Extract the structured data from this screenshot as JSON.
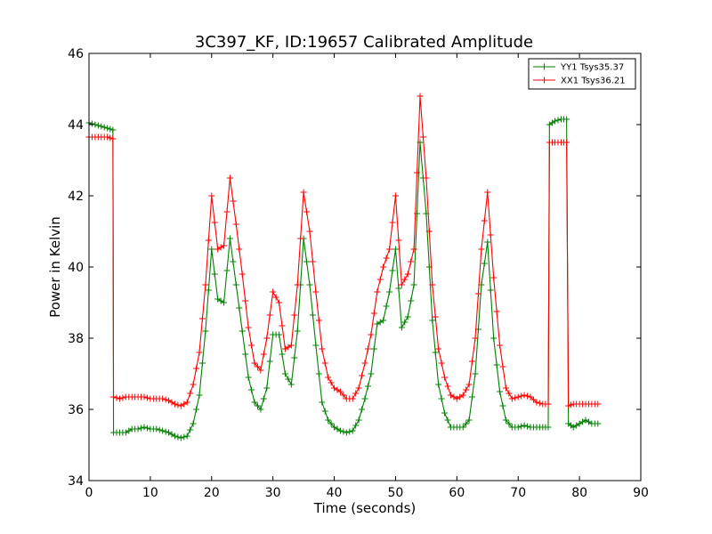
{
  "chart_data": {
    "type": "line",
    "title": "3C397_KF, ID:19657 Calibrated Amplitude",
    "xlabel": "Time (seconds)",
    "ylabel": "Power in Kelvin",
    "xlim": [
      0,
      90
    ],
    "ylim": [
      34,
      46
    ],
    "xticks": [
      "0",
      "10",
      "20",
      "30",
      "40",
      "50",
      "60",
      "70",
      "80",
      "90"
    ],
    "yticks": [
      "34",
      "36",
      "38",
      "40",
      "42",
      "44",
      "46"
    ],
    "grid": false,
    "legend_position": "top-right",
    "marker": "plus",
    "series": [
      {
        "name": "YY1 Tsys35.37",
        "color": "#008000",
        "points": [
          [
            0,
            44.05
          ],
          [
            1,
            44.0
          ],
          [
            2,
            43.95
          ],
          [
            3,
            43.9
          ],
          [
            3.9,
            43.85
          ],
          [
            4.0,
            35.35
          ],
          [
            5,
            35.35
          ],
          [
            6,
            35.35
          ],
          [
            7,
            35.45
          ],
          [
            8,
            35.45
          ],
          [
            9,
            35.5
          ],
          [
            10,
            35.45
          ],
          [
            11,
            35.45
          ],
          [
            12,
            35.4
          ],
          [
            13,
            35.35
          ],
          [
            14,
            35.25
          ],
          [
            15,
            35.2
          ],
          [
            16,
            35.25
          ],
          [
            17,
            35.6
          ],
          [
            18,
            36.4
          ],
          [
            19,
            38.2
          ],
          [
            20,
            40.5
          ],
          [
            21,
            39.1
          ],
          [
            22,
            39.0
          ],
          [
            23,
            40.8
          ],
          [
            24,
            39.5
          ],
          [
            25,
            38.2
          ],
          [
            26,
            36.9
          ],
          [
            27,
            36.2
          ],
          [
            28,
            36.0
          ],
          [
            29,
            36.6
          ],
          [
            30,
            38.1
          ],
          [
            31,
            38.1
          ],
          [
            32,
            37.0
          ],
          [
            33,
            36.7
          ],
          [
            34,
            38.2
          ],
          [
            35,
            40.8
          ],
          [
            36,
            39.5
          ],
          [
            37,
            37.8
          ],
          [
            38,
            36.2
          ],
          [
            39,
            35.7
          ],
          [
            40,
            35.5
          ],
          [
            41,
            35.4
          ],
          [
            42,
            35.35
          ],
          [
            43,
            35.4
          ],
          [
            44,
            35.7
          ],
          [
            45,
            36.3
          ],
          [
            46,
            37.0
          ],
          [
            47,
            38.4
          ],
          [
            48,
            38.5
          ],
          [
            49,
            39.3
          ],
          [
            50,
            40.5
          ],
          [
            51,
            38.3
          ],
          [
            52,
            38.6
          ],
          [
            53,
            39.5
          ],
          [
            54,
            43.5
          ],
          [
            55,
            41.5
          ],
          [
            56,
            38.5
          ],
          [
            57,
            36.7
          ],
          [
            58,
            35.9
          ],
          [
            59,
            35.5
          ],
          [
            60,
            35.5
          ],
          [
            61,
            35.5
          ],
          [
            62,
            35.7
          ],
          [
            63,
            37.0
          ],
          [
            64,
            39.5
          ],
          [
            65,
            40.7
          ],
          [
            66,
            38.0
          ],
          [
            67,
            36.5
          ],
          [
            68,
            35.7
          ],
          [
            69,
            35.5
          ],
          [
            70,
            35.5
          ],
          [
            71,
            35.55
          ],
          [
            72,
            35.5
          ],
          [
            73,
            35.5
          ],
          [
            74,
            35.5
          ],
          [
            74.9,
            35.5
          ],
          [
            75.1,
            44.0
          ],
          [
            76,
            44.1
          ],
          [
            77,
            44.15
          ],
          [
            77.9,
            44.15
          ],
          [
            78.2,
            35.6
          ],
          [
            79,
            35.5
          ],
          [
            80,
            35.6
          ],
          [
            81,
            35.7
          ],
          [
            82,
            35.6
          ],
          [
            83,
            35.6
          ]
        ]
      },
      {
        "name": "XX1 Tsys36.21",
        "color": "#ff0000",
        "points": [
          [
            0,
            43.65
          ],
          [
            1,
            43.65
          ],
          [
            2,
            43.65
          ],
          [
            3,
            43.65
          ],
          [
            3.9,
            43.6
          ],
          [
            4.0,
            36.35
          ],
          [
            5,
            36.3
          ],
          [
            6,
            36.35
          ],
          [
            7,
            36.35
          ],
          [
            8,
            36.35
          ],
          [
            9,
            36.35
          ],
          [
            10,
            36.3
          ],
          [
            11,
            36.3
          ],
          [
            12,
            36.3
          ],
          [
            13,
            36.25
          ],
          [
            14,
            36.15
          ],
          [
            15,
            36.1
          ],
          [
            16,
            36.2
          ],
          [
            17,
            36.7
          ],
          [
            18,
            37.6
          ],
          [
            19,
            39.5
          ],
          [
            20,
            42.0
          ],
          [
            21,
            40.5
          ],
          [
            22,
            40.6
          ],
          [
            23,
            42.5
          ],
          [
            24,
            41.2
          ],
          [
            25,
            39.8
          ],
          [
            26,
            38.3
          ],
          [
            27,
            37.3
          ],
          [
            28,
            37.1
          ],
          [
            29,
            38.0
          ],
          [
            30,
            39.3
          ],
          [
            31,
            39.0
          ],
          [
            32,
            37.7
          ],
          [
            33,
            37.8
          ],
          [
            34,
            39.5
          ],
          [
            35,
            42.1
          ],
          [
            36,
            41.0
          ],
          [
            37,
            39.3
          ],
          [
            38,
            37.7
          ],
          [
            39,
            36.9
          ],
          [
            40,
            36.6
          ],
          [
            41,
            36.5
          ],
          [
            42,
            36.3
          ],
          [
            43,
            36.3
          ],
          [
            44,
            36.6
          ],
          [
            45,
            37.3
          ],
          [
            46,
            38.1
          ],
          [
            47,
            39.3
          ],
          [
            48,
            40.0
          ],
          [
            49,
            40.5
          ],
          [
            50,
            42.0
          ],
          [
            51,
            39.5
          ],
          [
            52,
            39.8
          ],
          [
            53,
            40.5
          ],
          [
            54,
            44.8
          ],
          [
            55,
            42.5
          ],
          [
            56,
            39.5
          ],
          [
            57,
            37.7
          ],
          [
            58,
            36.9
          ],
          [
            59,
            36.4
          ],
          [
            60,
            36.3
          ],
          [
            61,
            36.4
          ],
          [
            62,
            36.7
          ],
          [
            63,
            38.0
          ],
          [
            64,
            40.5
          ],
          [
            65,
            42.1
          ],
          [
            66,
            39.7
          ],
          [
            67,
            37.8
          ],
          [
            68,
            36.6
          ],
          [
            69,
            36.3
          ],
          [
            70,
            36.35
          ],
          [
            71,
            36.4
          ],
          [
            72,
            36.35
          ],
          [
            73,
            36.2
          ],
          [
            74,
            36.15
          ],
          [
            74.9,
            36.15
          ],
          [
            75.1,
            43.5
          ],
          [
            76,
            43.5
          ],
          [
            77,
            43.5
          ],
          [
            77.9,
            43.5
          ],
          [
            78.2,
            36.1
          ],
          [
            79,
            36.15
          ],
          [
            80,
            36.15
          ],
          [
            81,
            36.15
          ],
          [
            82,
            36.15
          ],
          [
            83,
            36.15
          ]
        ]
      }
    ]
  }
}
